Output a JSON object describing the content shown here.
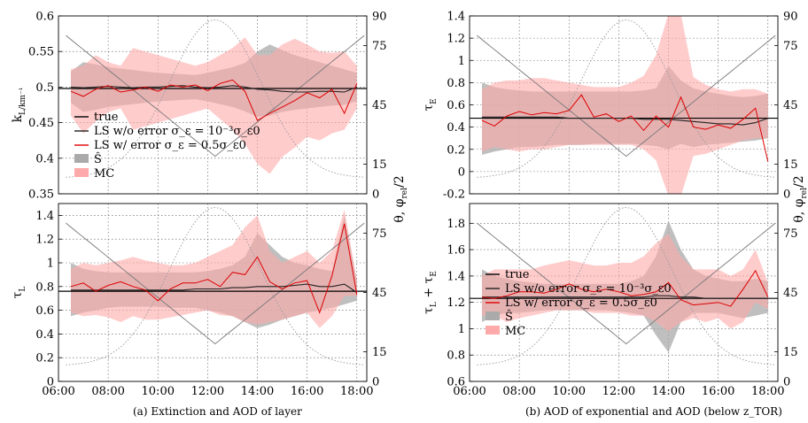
{
  "captions": {
    "left": "(a) Extinction and AOD of layer",
    "right": "(b) AOD of exponential and AOD (below z_TOR)"
  },
  "x_ticks": [
    "06:00",
    "08:00",
    "10:00",
    "12:00",
    "14:00",
    "16:00",
    "18:00"
  ],
  "colors": {
    "true": "#000000",
    "ls_no_err": "#222222",
    "ls_err": "#dd0000",
    "s_band": "#aaaaaa",
    "mc_band": "#ffaaaa",
    "theta": "#777777",
    "phi": "#999999"
  },
  "legend": {
    "true": "true",
    "ls_no_err": "LS w/o error σ_ε = 10⁻³σ_ε0",
    "ls_err": "LS w/ error σ_ε = 0.5σ_ε0",
    "s": "Ŝ",
    "mc": "MC"
  },
  "chart_data": [
    {
      "id": "kL",
      "type": "line",
      "ylabel": "k_L/km⁻¹",
      "ylim": [
        0.35,
        0.6
      ],
      "yticks": [
        0.35,
        0.4,
        0.45,
        0.5,
        0.55,
        0.6
      ],
      "ytick_labels": [
        "0.35",
        "0.4",
        "0.45",
        "0.5",
        "0.55",
        "0.6"
      ],
      "xlim": [
        6.0,
        18.4
      ],
      "angle_ticks": [
        0,
        15,
        45,
        75,
        90
      ],
      "show_angle_labels": true,
      "legend": true,
      "x": [
        6.5,
        7.0,
        7.5,
        8.0,
        8.5,
        9.0,
        9.5,
        10.0,
        10.5,
        11.0,
        11.5,
        12.0,
        12.5,
        13.0,
        13.5,
        14.0,
        14.5,
        15.0,
        15.5,
        16.0,
        16.5,
        17.0,
        17.5,
        18.0
      ],
      "true": 0.498,
      "ls_no_err": [
        0.5,
        0.499,
        0.5,
        0.501,
        0.5,
        0.499,
        0.5,
        0.5,
        0.501,
        0.502,
        0.5,
        0.499,
        0.5,
        0.502,
        0.5,
        0.497,
        0.496,
        0.494,
        0.493,
        0.493,
        0.494,
        0.494,
        0.493,
        0.5
      ],
      "ls_err": [
        0.494,
        0.487,
        0.497,
        0.502,
        0.493,
        0.496,
        0.5,
        0.494,
        0.503,
        0.5,
        0.503,
        0.495,
        0.505,
        0.51,
        0.494,
        0.453,
        0.463,
        0.472,
        0.481,
        0.492,
        0.485,
        0.497,
        0.463,
        0.505
      ],
      "s_lower": [
        0.478,
        0.465,
        0.468,
        0.472,
        0.474,
        0.476,
        0.478,
        0.48,
        0.481,
        0.482,
        0.483,
        0.48,
        0.476,
        0.472,
        0.466,
        0.458,
        0.46,
        0.465,
        0.468,
        0.47,
        0.472,
        0.474,
        0.475,
        0.48
      ],
      "s_upper": [
        0.522,
        0.535,
        0.532,
        0.528,
        0.526,
        0.524,
        0.522,
        0.52,
        0.519,
        0.518,
        0.517,
        0.52,
        0.524,
        0.528,
        0.534,
        0.55,
        0.56,
        0.552,
        0.545,
        0.54,
        0.535,
        0.53,
        0.525,
        0.52
      ],
      "mc_lower": [
        0.46,
        0.435,
        0.452,
        0.465,
        0.47,
        0.44,
        0.445,
        0.45,
        0.455,
        0.46,
        0.465,
        0.47,
        0.455,
        0.44,
        0.42,
        0.392,
        0.378,
        0.402,
        0.415,
        0.43,
        0.425,
        0.435,
        0.44,
        0.47
      ],
      "mc_upper": [
        0.525,
        0.53,
        0.545,
        0.535,
        0.53,
        0.555,
        0.55,
        0.545,
        0.54,
        0.535,
        0.53,
        0.535,
        0.545,
        0.555,
        0.57,
        0.545,
        0.545,
        0.56,
        0.568,
        0.56,
        0.55,
        0.548,
        0.55,
        0.53
      ]
    },
    {
      "id": "tauE",
      "type": "line",
      "ylabel": "τ_E",
      "ylim": [
        -0.2,
        1.4
      ],
      "yticks": [
        -0.2,
        0,
        0.2,
        0.4,
        0.6,
        0.8,
        1.0,
        1.2,
        1.4
      ],
      "ytick_labels": [
        "-0.2",
        "0",
        "0.2",
        "0.4",
        "0.6",
        "0.8",
        "1",
        "1.2",
        "1.4"
      ],
      "xlim": [
        6.0,
        18.4
      ],
      "angle_ticks": [
        0,
        15,
        45,
        75,
        90
      ],
      "show_angle_labels": true,
      "legend": false,
      "x": [
        6.5,
        7.0,
        7.5,
        8.0,
        8.5,
        9.0,
        9.5,
        10.0,
        10.5,
        11.0,
        11.5,
        12.0,
        12.5,
        13.0,
        13.5,
        14.0,
        14.5,
        15.0,
        15.5,
        16.0,
        16.5,
        17.0,
        17.5,
        18.0
      ],
      "true": 0.48,
      "ls_no_err": [
        0.49,
        0.49,
        0.49,
        0.49,
        0.49,
        0.49,
        0.49,
        0.48,
        0.48,
        0.48,
        0.48,
        0.48,
        0.48,
        0.47,
        0.47,
        0.47,
        0.46,
        0.45,
        0.44,
        0.43,
        0.43,
        0.42,
        0.44,
        0.48
      ],
      "ls_err": [
        0.46,
        0.41,
        0.5,
        0.54,
        0.51,
        0.53,
        0.52,
        0.55,
        0.69,
        0.49,
        0.52,
        0.45,
        0.5,
        0.37,
        0.5,
        0.4,
        0.67,
        0.4,
        0.38,
        0.42,
        0.39,
        0.47,
        0.57,
        0.09
      ],
      "s_lower": [
        0.15,
        0.18,
        0.2,
        0.22,
        0.22,
        0.23,
        0.24,
        0.24,
        0.24,
        0.25,
        0.25,
        0.25,
        0.25,
        0.24,
        0.23,
        0.2,
        0.25,
        0.22,
        0.24,
        0.25,
        0.26,
        0.27,
        0.28,
        0.3
      ],
      "s_upper": [
        0.8,
        0.76,
        0.74,
        0.73,
        0.72,
        0.72,
        0.72,
        0.72,
        0.72,
        0.72,
        0.72,
        0.72,
        0.72,
        0.73,
        0.75,
        0.95,
        0.82,
        0.75,
        0.72,
        0.7,
        0.68,
        0.67,
        0.68,
        0.7
      ],
      "mc_lower": [
        0.18,
        0.22,
        0.2,
        0.18,
        0.2,
        0.2,
        0.22,
        0.24,
        0.24,
        0.24,
        0.24,
        0.24,
        0.24,
        0.2,
        0.1,
        -0.22,
        -0.22,
        0.14,
        0.16,
        0.2,
        0.24,
        0.28,
        0.3,
        0.3
      ],
      "mc_upper": [
        0.74,
        0.8,
        0.82,
        0.82,
        0.84,
        0.84,
        0.82,
        0.8,
        0.78,
        0.76,
        0.76,
        0.76,
        0.8,
        0.86,
        1.05,
        1.42,
        1.42,
        0.85,
        0.78,
        0.74,
        0.72,
        0.74,
        0.74,
        0.7
      ]
    },
    {
      "id": "tauL",
      "type": "line",
      "ylabel": "τ_L",
      "ylim": [
        0,
        1.5
      ],
      "yticks": [
        0,
        0.2,
        0.4,
        0.6,
        0.8,
        1.0,
        1.2,
        1.4
      ],
      "ytick_labels": [
        "0",
        "0.2",
        "0.4",
        "0.6",
        "0.8",
        "1",
        "1.2",
        "1.4"
      ],
      "xlim": [
        6.0,
        18.4
      ],
      "angle_ticks": [
        0,
        15,
        45,
        75
      ],
      "show_angle_labels": true,
      "legend": false,
      "x": [
        6.5,
        7.0,
        7.5,
        8.0,
        8.5,
        9.0,
        9.5,
        10.0,
        10.5,
        11.0,
        11.5,
        12.0,
        12.5,
        13.0,
        13.5,
        14.0,
        14.5,
        15.0,
        15.5,
        16.0,
        16.5,
        17.0,
        17.5,
        18.0
      ],
      "true": 0.76,
      "ls_no_err": [
        0.77,
        0.77,
        0.77,
        0.77,
        0.77,
        0.77,
        0.77,
        0.77,
        0.77,
        0.77,
        0.78,
        0.78,
        0.78,
        0.79,
        0.79,
        0.8,
        0.8,
        0.8,
        0.81,
        0.82,
        0.8,
        0.8,
        0.82,
        0.75
      ],
      "ls_err": [
        0.8,
        0.83,
        0.76,
        0.81,
        0.84,
        0.8,
        0.77,
        0.68,
        0.78,
        0.83,
        0.83,
        0.86,
        0.8,
        0.92,
        0.9,
        1.05,
        0.84,
        0.78,
        0.83,
        0.85,
        0.58,
        0.89,
        1.33,
        0.73
      ],
      "s_lower": [
        0.55,
        0.58,
        0.6,
        0.62,
        0.63,
        0.63,
        0.63,
        0.63,
        0.62,
        0.62,
        0.62,
        0.6,
        0.58,
        0.55,
        0.5,
        0.45,
        0.48,
        0.52,
        0.55,
        0.58,
        0.6,
        0.62,
        0.65,
        0.68
      ],
      "s_upper": [
        1.0,
        0.95,
        0.93,
        0.92,
        0.92,
        0.92,
        0.92,
        0.92,
        0.92,
        0.92,
        0.92,
        0.93,
        0.95,
        0.98,
        1.05,
        1.25,
        1.15,
        1.05,
        1.0,
        0.98,
        0.95,
        0.93,
        1.4,
        0.85
      ],
      "mc_lower": [
        0.58,
        0.55,
        0.56,
        0.54,
        0.5,
        0.55,
        0.52,
        0.52,
        0.54,
        0.56,
        0.58,
        0.6,
        0.56,
        0.55,
        0.5,
        0.48,
        0.5,
        0.52,
        0.55,
        0.58,
        0.45,
        0.55,
        0.72,
        0.72
      ],
      "mc_upper": [
        0.95,
        1.0,
        0.98,
        1.0,
        1.02,
        1.05,
        1.02,
        1.0,
        0.98,
        0.98,
        1.0,
        1.05,
        1.1,
        1.15,
        1.3,
        1.4,
        1.1,
        1.0,
        1.05,
        1.1,
        1.0,
        1.1,
        1.45,
        0.85
      ]
    },
    {
      "id": "tauSum",
      "type": "line",
      "ylabel": "τ_L + τ_E",
      "ylim": [
        0.6,
        1.95
      ],
      "yticks": [
        0.6,
        0.8,
        1.0,
        1.2,
        1.4,
        1.6,
        1.8
      ],
      "ytick_labels": [
        "0.6",
        "0.8",
        "1",
        "1.2",
        "1.4",
        "1.6",
        "1.8"
      ],
      "xlim": [
        6.0,
        18.4
      ],
      "angle_ticks": [
        0,
        15,
        45,
        75
      ],
      "show_angle_labels": true,
      "legend": true,
      "x": [
        6.5,
        7.0,
        7.5,
        8.0,
        8.5,
        9.0,
        9.5,
        10.0,
        10.5,
        11.0,
        11.5,
        12.0,
        12.5,
        13.0,
        13.5,
        14.0,
        14.5,
        15.0,
        15.5,
        16.0,
        16.5,
        17.0,
        17.5,
        18.0
      ],
      "true": 1.23,
      "ls_no_err": [
        1.24,
        1.24,
        1.24,
        1.24,
        1.24,
        1.24,
        1.24,
        1.24,
        1.24,
        1.24,
        1.24,
        1.24,
        1.24,
        1.24,
        1.25,
        1.25,
        1.24,
        1.24,
        1.23,
        1.23,
        1.23,
        1.23,
        1.23,
        1.23
      ],
      "ls_err": [
        1.24,
        1.23,
        1.25,
        1.28,
        1.28,
        1.27,
        1.3,
        1.34,
        1.3,
        1.28,
        1.3,
        1.28,
        1.25,
        1.26,
        1.28,
        1.35,
        1.22,
        1.18,
        1.19,
        1.2,
        1.17,
        1.3,
        1.44,
        1.24
      ],
      "s_lower": [
        1.05,
        1.1,
        1.12,
        1.12,
        1.13,
        1.14,
        1.14,
        1.14,
        1.14,
        1.14,
        1.14,
        1.13,
        1.12,
        1.1,
        0.95,
        0.82,
        1.05,
        1.12,
        1.12,
        1.12,
        1.1,
        1.08,
        1.1,
        1.12
      ],
      "s_upper": [
        1.45,
        1.4,
        1.38,
        1.36,
        1.35,
        1.34,
        1.34,
        1.34,
        1.34,
        1.34,
        1.34,
        1.34,
        1.36,
        1.4,
        1.55,
        1.82,
        1.6,
        1.45,
        1.4,
        1.38,
        1.36,
        1.36,
        1.38,
        1.36
      ],
      "mc_lower": [
        1.1,
        1.1,
        1.05,
        1.08,
        1.1,
        1.12,
        1.14,
        1.14,
        1.14,
        1.12,
        1.12,
        1.12,
        1.1,
        1.1,
        1.05,
        0.98,
        1.05,
        1.08,
        1.05,
        1.08,
        1.0,
        1.05,
        1.2,
        1.15
      ],
      "mc_upper": [
        1.4,
        1.45,
        1.45,
        1.45,
        1.45,
        1.48,
        1.5,
        1.52,
        1.5,
        1.48,
        1.48,
        1.5,
        1.5,
        1.55,
        1.65,
        1.72,
        1.55,
        1.45,
        1.45,
        1.45,
        1.4,
        1.45,
        1.6,
        1.35
      ]
    }
  ]
}
